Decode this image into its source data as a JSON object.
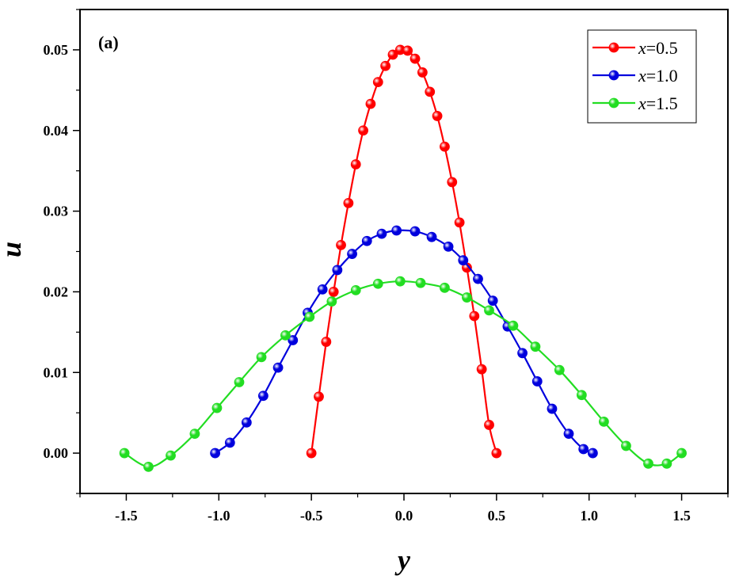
{
  "chart_data": {
    "type": "line",
    "panel_label": "(a)",
    "xlabel": "y",
    "ylabel": "u",
    "xlim": [
      -1.75,
      1.75
    ],
    "ylim": [
      -0.005,
      0.055
    ],
    "xticks": [
      -1.5,
      -1.0,
      -0.5,
      0.0,
      0.5,
      1.0,
      1.5
    ],
    "xtick_labels": [
      "-1.5",
      "-1.0",
      "-0.5",
      "0.0",
      "0.5",
      "1.0",
      "1.5"
    ],
    "yticks": [
      0.0,
      0.01,
      0.02,
      0.03,
      0.04,
      0.05
    ],
    "ytick_labels": [
      "0.00",
      "0.01",
      "0.02",
      "0.03",
      "0.04",
      "0.05"
    ],
    "grid": false,
    "legend_position": "top-right",
    "series": [
      {
        "name": "x=0.5",
        "legend_var": "x",
        "legend_value": "=0.5",
        "color": "#ff0000",
        "x": [
          -0.5,
          -0.46,
          -0.42,
          -0.38,
          -0.34,
          -0.3,
          -0.26,
          -0.22,
          -0.18,
          -0.14,
          -0.1,
          -0.06,
          -0.02,
          0.02,
          0.06,
          0.1,
          0.14,
          0.18,
          0.22,
          0.26,
          0.3,
          0.34,
          0.38,
          0.42,
          0.46,
          0.5
        ],
        "y": [
          0.0,
          0.007,
          0.0138,
          0.02,
          0.0258,
          0.031,
          0.0358,
          0.04,
          0.0433,
          0.046,
          0.048,
          0.0494,
          0.05,
          0.0499,
          0.0489,
          0.0472,
          0.0448,
          0.0418,
          0.038,
          0.0336,
          0.0286,
          0.023,
          0.017,
          0.0104,
          0.0035,
          0.0
        ]
      },
      {
        "name": "x=1.0",
        "legend_var": "x",
        "legend_value": "=1.0",
        "color": "#0000dd",
        "x": [
          -1.02,
          -0.94,
          -0.85,
          -0.76,
          -0.68,
          -0.6,
          -0.52,
          -0.44,
          -0.36,
          -0.28,
          -0.2,
          -0.12,
          -0.04,
          0.06,
          0.15,
          0.24,
          0.32,
          0.4,
          0.48,
          0.56,
          0.64,
          0.72,
          0.8,
          0.89,
          0.97,
          1.02
        ],
        "y": [
          0.0,
          0.0013,
          0.0038,
          0.0071,
          0.0106,
          0.014,
          0.0174,
          0.0203,
          0.0227,
          0.0247,
          0.0263,
          0.0272,
          0.0276,
          0.0275,
          0.0268,
          0.0256,
          0.0239,
          0.0216,
          0.0189,
          0.0157,
          0.0124,
          0.0089,
          0.0055,
          0.0024,
          0.0005,
          0.0
        ]
      },
      {
        "name": "x=1.5",
        "legend_var": "x",
        "legend_value": "=1.5",
        "color": "#22dd22",
        "x": [
          -1.51,
          -1.38,
          -1.26,
          -1.13,
          -1.01,
          -0.89,
          -0.77,
          -0.64,
          -0.51,
          -0.39,
          -0.26,
          -0.14,
          -0.02,
          0.09,
          0.22,
          0.34,
          0.46,
          0.59,
          0.71,
          0.84,
          0.96,
          1.08,
          1.2,
          1.32,
          1.42,
          1.5
        ],
        "y": [
          0.0,
          -0.0017,
          -0.0003,
          0.0024,
          0.0056,
          0.0088,
          0.0119,
          0.0146,
          0.0169,
          0.0188,
          0.0202,
          0.021,
          0.0213,
          0.0211,
          0.0205,
          0.0193,
          0.0177,
          0.0158,
          0.0132,
          0.0103,
          0.0072,
          0.0039,
          0.0009,
          -0.0013,
          -0.0013,
          0.0
        ]
      }
    ]
  }
}
